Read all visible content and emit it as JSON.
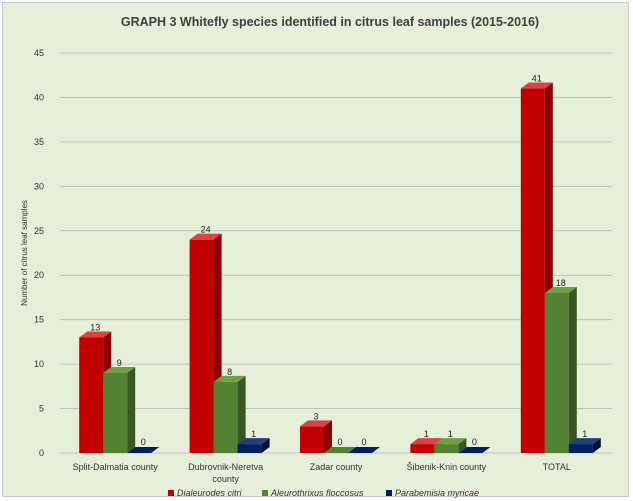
{
  "chart_data": {
    "type": "bar",
    "title": "GRAPH 3 Whitefly species identified in citrus leaf samples (2015-2016)",
    "ylabel": "Number of citrus leaf samples",
    "xlabel": "",
    "ylim": [
      0,
      45
    ],
    "yticks": [
      0,
      5,
      10,
      15,
      20,
      25,
      30,
      35,
      40,
      45
    ],
    "grid": true,
    "legend_position": "bottom",
    "categories": [
      [
        "Split-Dalmatia county"
      ],
      [
        "Dubrovnik-Neretva",
        "county"
      ],
      [
        "Zadar county"
      ],
      [
        "Šibenik-Knin county"
      ],
      [
        "TOTAL"
      ]
    ],
    "series": [
      {
        "name": "Dialeurodes citri",
        "color": "#c00000",
        "side": "#8b0000",
        "top": "#e04040",
        "values": [
          13,
          24,
          3,
          1,
          41
        ]
      },
      {
        "name": "Aleurothrixus floccosus",
        "color": "#548235",
        "side": "#385723",
        "top": "#70a040",
        "values": [
          9,
          8,
          0,
          1,
          18
        ]
      },
      {
        "name": "Parabemisia myricae",
        "color": "#002060",
        "side": "#001030",
        "top": "#1f3f80",
        "values": [
          0,
          1,
          0,
          0,
          1
        ]
      }
    ]
  }
}
